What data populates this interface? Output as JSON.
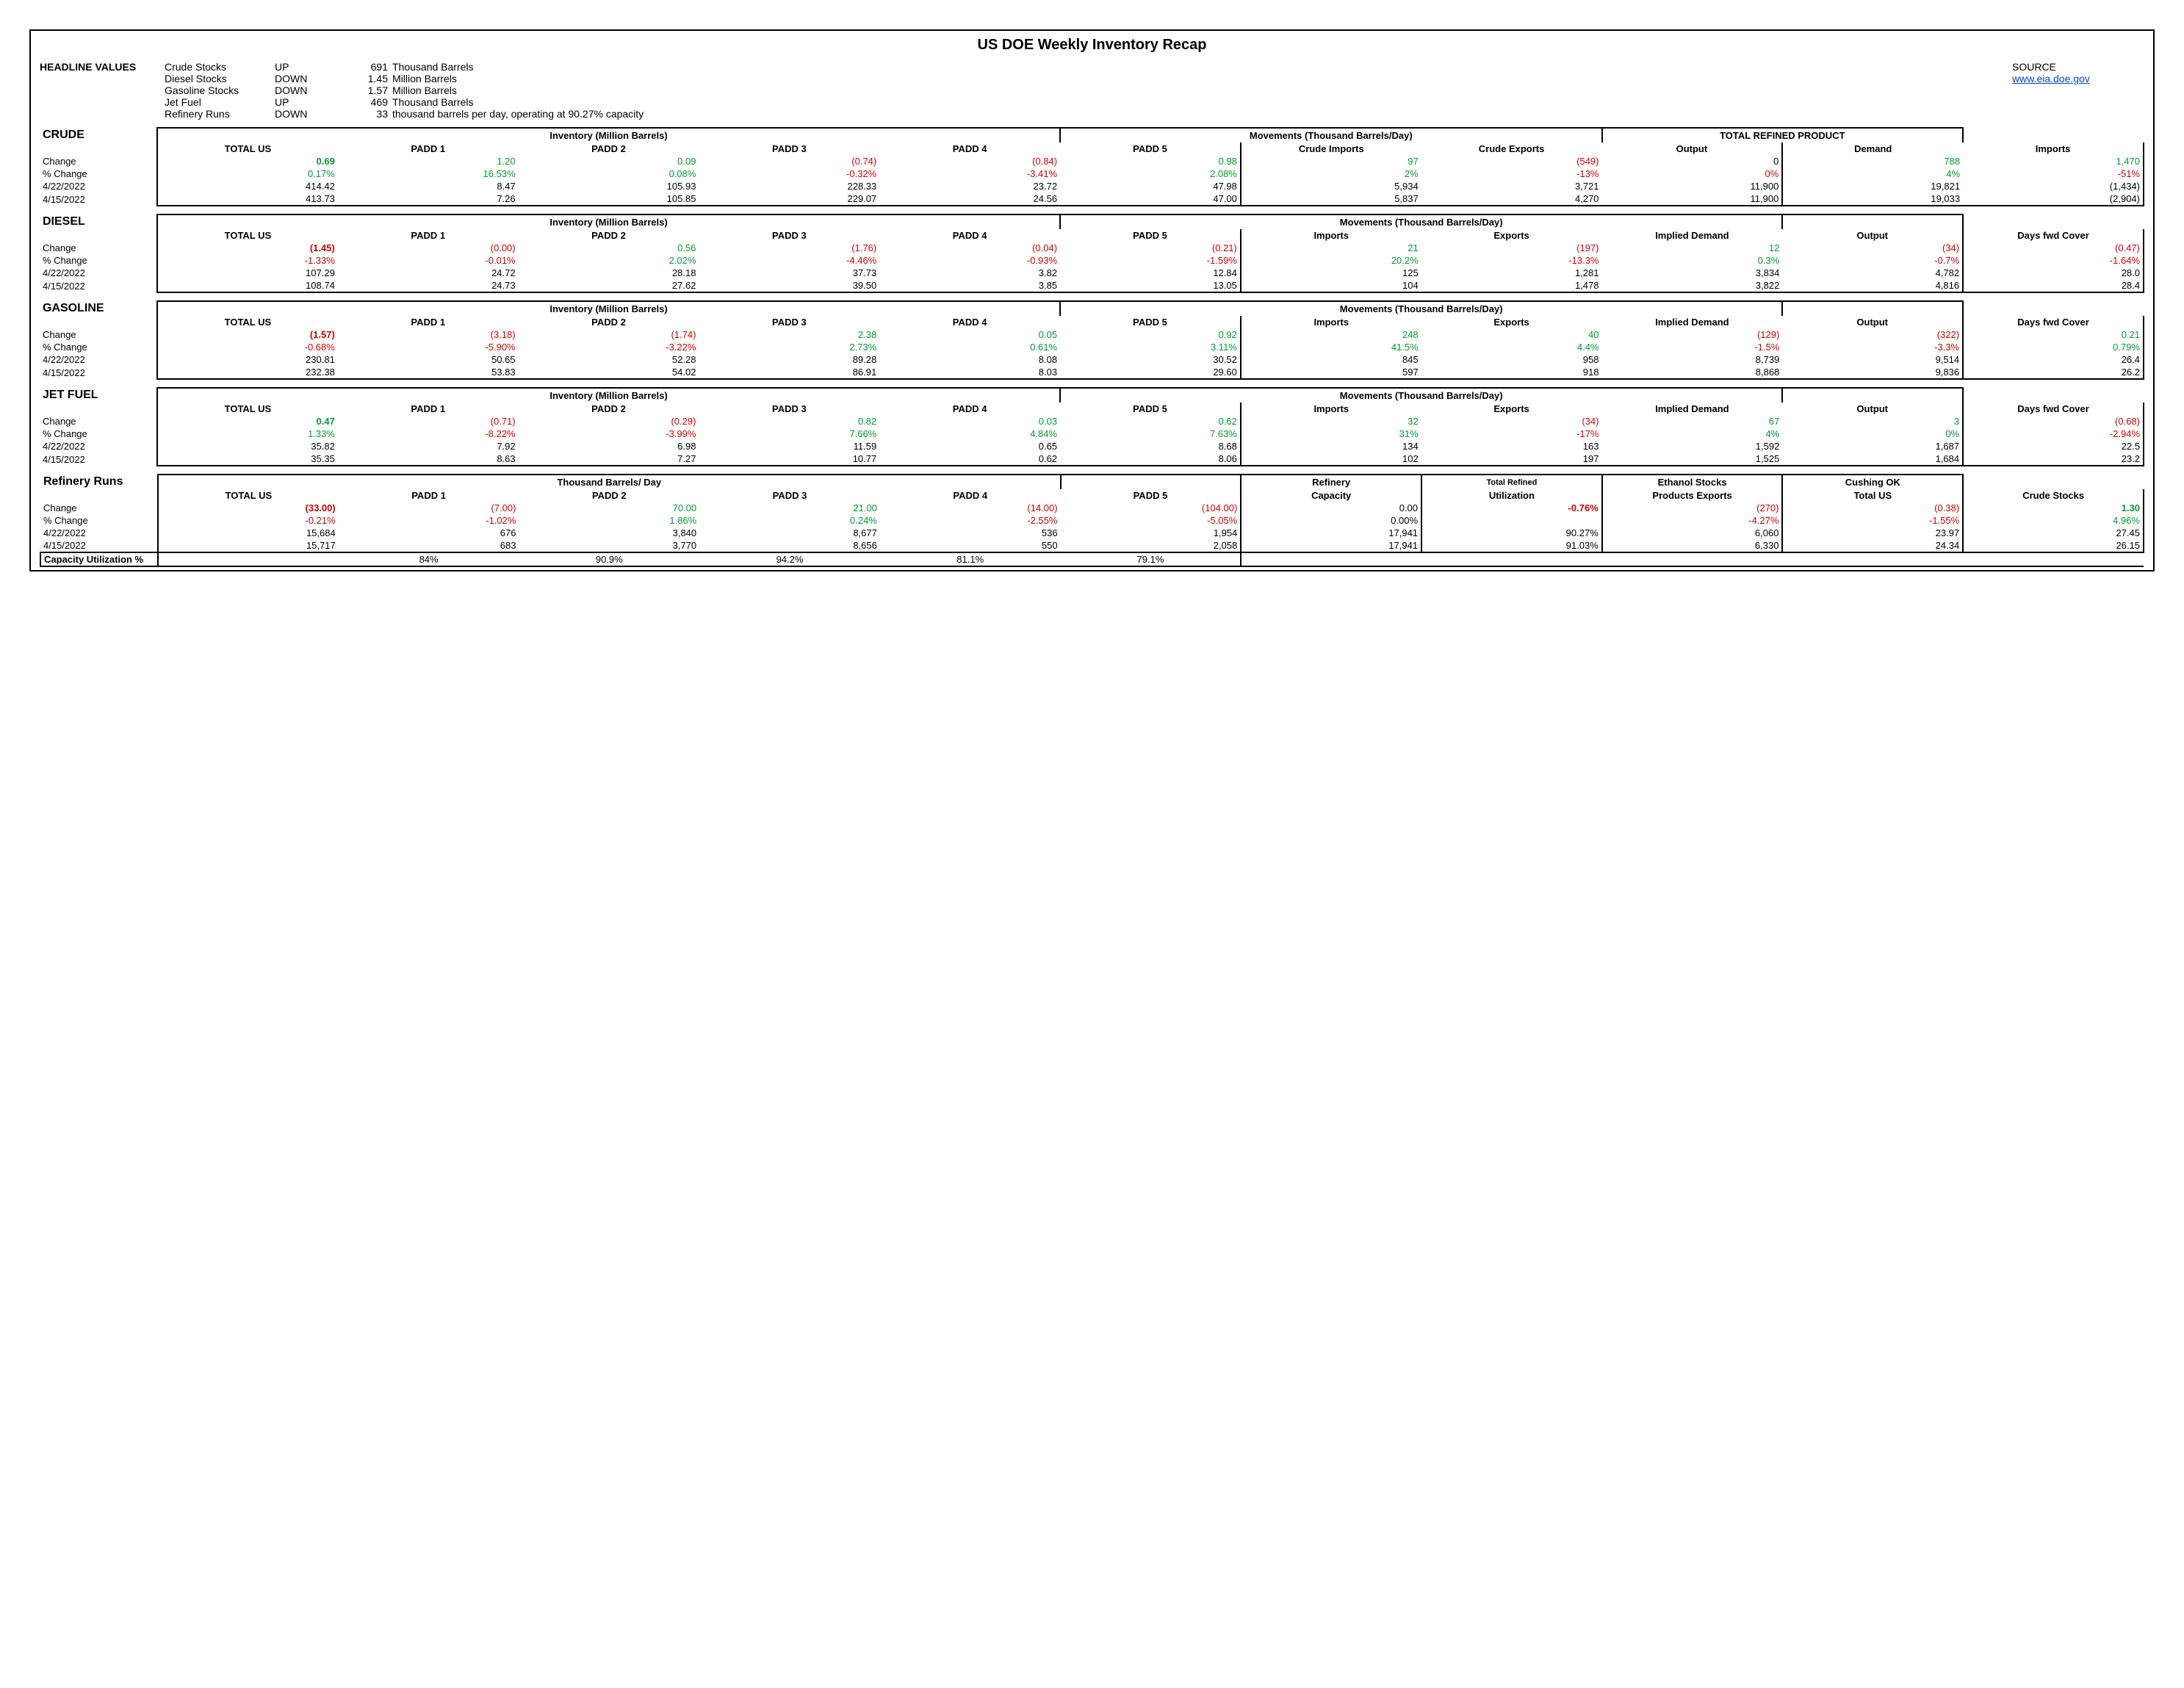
{
  "title": "US DOE Weekly Inventory Recap",
  "headline": {
    "label": "HEADLINE VALUES",
    "rows": [
      {
        "name": "Crude Stocks",
        "dir": "UP",
        "val": "691",
        "unit": "Thousand Barrels"
      },
      {
        "name": "Diesel Stocks",
        "dir": "DOWN",
        "val": "1.45",
        "unit": "Million Barrels"
      },
      {
        "name": "Gasoline Stocks",
        "dir": "DOWN",
        "val": "1.57",
        "unit": "Million Barrels"
      },
      {
        "name": "Jet Fuel",
        "dir": "UP",
        "val": "469",
        "unit": "Thousand Barrels"
      },
      {
        "name": "Refinery Runs",
        "dir": "DOWN",
        "val": "33",
        "unit": "thousand barrels per day, operating at     90.27% capacity"
      }
    ],
    "source_label": "SOURCE",
    "source_link": "www.eia.doe.gov"
  },
  "crude": {
    "label": "CRUDE",
    "inv_header": "Inventory (Million Barrels)",
    "mov_header": "Movements (Thousand Barrels/Day)",
    "tot_header": "TOTAL REFINED PRODUCT",
    "cols": [
      "TOTAL US",
      "PADD 1",
      "PADD 2",
      "PADD 3",
      "PADD 4",
      "PADD 5",
      "Crude Imports",
      "Crude Exports",
      "Output",
      "Demand",
      "Imports"
    ],
    "rows": [
      {
        "label": "Change",
        "vals": [
          [
            "0.69",
            "pos bold"
          ],
          [
            "1.20",
            "pos"
          ],
          [
            "0.09",
            "pos"
          ],
          [
            "(0.74)",
            "neg"
          ],
          [
            "(0.84)",
            "neg"
          ],
          [
            "0.98",
            "pos"
          ],
          [
            "97",
            "pos"
          ],
          [
            "(549)",
            "neg"
          ],
          [
            "0",
            ""
          ],
          [
            "788",
            "pos"
          ],
          [
            "1,470",
            "pos"
          ]
        ]
      },
      {
        "label": "% Change",
        "vals": [
          [
            "0.17%",
            "pos"
          ],
          [
            "16.53%",
            "pos"
          ],
          [
            "0.08%",
            "pos"
          ],
          [
            "-0.32%",
            "neg"
          ],
          [
            "-3.41%",
            "neg"
          ],
          [
            "2.08%",
            "pos"
          ],
          [
            "2%",
            "pos"
          ],
          [
            "-13%",
            "neg"
          ],
          [
            "0%",
            "neg"
          ],
          [
            "4%",
            "pos"
          ],
          [
            "-51%",
            "neg"
          ]
        ]
      },
      {
        "label": "4/22/2022",
        "vals": [
          [
            "414.42",
            ""
          ],
          [
            "8.47",
            ""
          ],
          [
            "105.93",
            ""
          ],
          [
            "228.33",
            ""
          ],
          [
            "23.72",
            ""
          ],
          [
            "47.98",
            ""
          ],
          [
            "5,934",
            ""
          ],
          [
            "3,721",
            ""
          ],
          [
            "11,900",
            ""
          ],
          [
            "19,821",
            ""
          ],
          [
            "(1,434)",
            ""
          ]
        ]
      },
      {
        "label": "4/15/2022",
        "vals": [
          [
            "413.73",
            ""
          ],
          [
            "7.26",
            ""
          ],
          [
            "105.85",
            ""
          ],
          [
            "229.07",
            ""
          ],
          [
            "24.56",
            ""
          ],
          [
            "47.00",
            ""
          ],
          [
            "5,837",
            ""
          ],
          [
            "4,270",
            ""
          ],
          [
            "11,900",
            ""
          ],
          [
            "19,033",
            ""
          ],
          [
            "(2,904)",
            ""
          ]
        ]
      }
    ]
  },
  "diesel": {
    "label": "DIESEL",
    "inv_header": "Inventory (Million Barrels)",
    "mov_header": "Movements (Thousand Barrels/Day)",
    "cols": [
      "TOTAL US",
      "PADD 1",
      "PADD 2",
      "PADD 3",
      "PADD 4",
      "PADD 5",
      "Imports",
      "Exports",
      "Implied Demand",
      "Output",
      "Days fwd Cover"
    ],
    "rows": [
      {
        "label": "Change",
        "vals": [
          [
            "(1.45)",
            "neg bold"
          ],
          [
            "(0.00)",
            "neg"
          ],
          [
            "0.56",
            "pos"
          ],
          [
            "(1.76)",
            "neg"
          ],
          [
            "(0.04)",
            "neg"
          ],
          [
            "(0.21)",
            "neg"
          ],
          [
            "21",
            "pos"
          ],
          [
            "(197)",
            "neg"
          ],
          [
            "12",
            "pos"
          ],
          [
            "(34)",
            "neg"
          ],
          [
            "(0.47)",
            "neg"
          ]
        ]
      },
      {
        "label": "% Change",
        "vals": [
          [
            "-1.33%",
            "neg"
          ],
          [
            "-0.01%",
            "neg"
          ],
          [
            "2.02%",
            "pos"
          ],
          [
            "-4.46%",
            "neg"
          ],
          [
            "-0.93%",
            "neg"
          ],
          [
            "-1.59%",
            "neg"
          ],
          [
            "20.2%",
            "pos"
          ],
          [
            "-13.3%",
            "neg"
          ],
          [
            "0.3%",
            "pos"
          ],
          [
            "-0.7%",
            "neg"
          ],
          [
            "-1.64%",
            "neg"
          ]
        ]
      },
      {
        "label": "4/22/2022",
        "vals": [
          [
            "107.29",
            ""
          ],
          [
            "24.72",
            ""
          ],
          [
            "28.18",
            ""
          ],
          [
            "37.73",
            ""
          ],
          [
            "3.82",
            ""
          ],
          [
            "12.84",
            ""
          ],
          [
            "125",
            ""
          ],
          [
            "1,281",
            ""
          ],
          [
            "3,834",
            ""
          ],
          [
            "4,782",
            ""
          ],
          [
            "28.0",
            ""
          ]
        ]
      },
      {
        "label": "4/15/2022",
        "vals": [
          [
            "108.74",
            ""
          ],
          [
            "24.73",
            ""
          ],
          [
            "27.62",
            ""
          ],
          [
            "39.50",
            ""
          ],
          [
            "3.85",
            ""
          ],
          [
            "13.05",
            ""
          ],
          [
            "104",
            ""
          ],
          [
            "1,478",
            ""
          ],
          [
            "3,822",
            ""
          ],
          [
            "4,816",
            ""
          ],
          [
            "28.4",
            ""
          ]
        ]
      }
    ]
  },
  "gasoline": {
    "label": "GASOLINE",
    "cols": [
      "TOTAL US",
      "PADD 1",
      "PADD 2",
      "PADD 3",
      "PADD 4",
      "PADD 5",
      "Imports",
      "Exports",
      "Implied Demand",
      "Output",
      "Days fwd Cover"
    ],
    "rows": [
      {
        "label": "Change",
        "vals": [
          [
            "(1.57)",
            "neg bold"
          ],
          [
            "(3.18)",
            "neg"
          ],
          [
            "(1.74)",
            "neg"
          ],
          [
            "2.38",
            "pos"
          ],
          [
            "0.05",
            "pos"
          ],
          [
            "0.92",
            "pos"
          ],
          [
            "248",
            "pos"
          ],
          [
            "40",
            "pos"
          ],
          [
            "(129)",
            "neg"
          ],
          [
            "(322)",
            "neg"
          ],
          [
            "0.21",
            "pos"
          ]
        ]
      },
      {
        "label": "% Change",
        "vals": [
          [
            "-0.68%",
            "neg"
          ],
          [
            "-5.90%",
            "neg"
          ],
          [
            "-3.22%",
            "neg"
          ],
          [
            "2.73%",
            "pos"
          ],
          [
            "0.61%",
            "pos"
          ],
          [
            "3.11%",
            "pos"
          ],
          [
            "41.5%",
            "pos"
          ],
          [
            "4.4%",
            "pos"
          ],
          [
            "-1.5%",
            "neg"
          ],
          [
            "-3.3%",
            "neg"
          ],
          [
            "0.79%",
            "pos"
          ]
        ]
      },
      {
        "label": "4/22/2022",
        "vals": [
          [
            "230.81",
            ""
          ],
          [
            "50.65",
            ""
          ],
          [
            "52.28",
            ""
          ],
          [
            "89.28",
            ""
          ],
          [
            "8.08",
            ""
          ],
          [
            "30.52",
            ""
          ],
          [
            "845",
            ""
          ],
          [
            "958",
            ""
          ],
          [
            "8,739",
            ""
          ],
          [
            "9,514",
            ""
          ],
          [
            "26.4",
            ""
          ]
        ]
      },
      {
        "label": "4/15/2022",
        "vals": [
          [
            "232.38",
            ""
          ],
          [
            "53.83",
            ""
          ],
          [
            "54.02",
            ""
          ],
          [
            "86.91",
            ""
          ],
          [
            "8.03",
            ""
          ],
          [
            "29.60",
            ""
          ],
          [
            "597",
            ""
          ],
          [
            "918",
            ""
          ],
          [
            "8,868",
            ""
          ],
          [
            "9,836",
            ""
          ],
          [
            "26.2",
            ""
          ]
        ]
      }
    ]
  },
  "jet": {
    "label": "JET FUEL",
    "cols": [
      "TOTAL US",
      "PADD 1",
      "PADD 2",
      "PADD 3",
      "PADD 4",
      "PADD 5",
      "Imports",
      "Exports",
      "Implied Demand",
      "Output",
      "Days fwd Cover"
    ],
    "rows": [
      {
        "label": "Change",
        "vals": [
          [
            "0.47",
            "pos bold"
          ],
          [
            "(0.71)",
            "neg"
          ],
          [
            "(0.29)",
            "neg"
          ],
          [
            "0.82",
            "pos"
          ],
          [
            "0.03",
            "pos"
          ],
          [
            "0.62",
            "pos"
          ],
          [
            "32",
            "pos"
          ],
          [
            "(34)",
            "neg"
          ],
          [
            "67",
            "pos"
          ],
          [
            "3",
            "pos"
          ],
          [
            "(0.68)",
            "neg"
          ]
        ]
      },
      {
        "label": "% Change",
        "vals": [
          [
            "1.33%",
            "pos"
          ],
          [
            "-8.22%",
            "neg"
          ],
          [
            "-3.99%",
            "neg"
          ],
          [
            "7.66%",
            "pos"
          ],
          [
            "4.84%",
            "pos"
          ],
          [
            "7.63%",
            "pos"
          ],
          [
            "31%",
            "pos"
          ],
          [
            "-17%",
            "neg"
          ],
          [
            "4%",
            "pos"
          ],
          [
            "0%",
            "pos"
          ],
          [
            "-2.94%",
            "neg"
          ]
        ]
      },
      {
        "label": "4/22/2022",
        "vals": [
          [
            "35.82",
            ""
          ],
          [
            "7.92",
            ""
          ],
          [
            "6.98",
            ""
          ],
          [
            "11.59",
            ""
          ],
          [
            "0.65",
            ""
          ],
          [
            "8.68",
            ""
          ],
          [
            "134",
            ""
          ],
          [
            "163",
            ""
          ],
          [
            "1,592",
            ""
          ],
          [
            "1,687",
            ""
          ],
          [
            "22.5",
            ""
          ]
        ]
      },
      {
        "label": "4/15/2022",
        "vals": [
          [
            "35.35",
            ""
          ],
          [
            "8.63",
            ""
          ],
          [
            "7.27",
            ""
          ],
          [
            "10.77",
            ""
          ],
          [
            "0.62",
            ""
          ],
          [
            "8.06",
            ""
          ],
          [
            "102",
            ""
          ],
          [
            "197",
            ""
          ],
          [
            "1,525",
            ""
          ],
          [
            "1,684",
            ""
          ],
          [
            "23.2",
            ""
          ]
        ]
      }
    ]
  },
  "refinery": {
    "label": "Refinery Runs",
    "thd_header": "Thousand Barrels/ Day",
    "headers1": [
      "",
      "",
      "",
      "",
      "",
      "",
      "",
      "Refinery",
      "Total Refined",
      "Ethanol Stocks",
      "Cushing OK"
    ],
    "cols": [
      "TOTAL US",
      "PADD 1",
      "PADD 2",
      "PADD 3",
      "PADD 4",
      "PADD 5",
      "Capacity",
      "Utilization",
      "Products Exports",
      "Total US",
      "Crude Stocks"
    ],
    "rows": [
      {
        "label": "Change",
        "vals": [
          [
            "(33.00)",
            "neg bold"
          ],
          [
            "(7.00)",
            "neg"
          ],
          [
            "70.00",
            "pos"
          ],
          [
            "21.00",
            "pos"
          ],
          [
            "(14.00)",
            "neg"
          ],
          [
            "(104.00)",
            "neg"
          ],
          [
            "0.00",
            ""
          ],
          [
            "-0.76%",
            "neg bold"
          ],
          [
            "(270)",
            "neg"
          ],
          [
            "(0.38)",
            "neg"
          ],
          [
            "1.30",
            "pos bold"
          ]
        ]
      },
      {
        "label": "% Change",
        "vals": [
          [
            "-0.21%",
            "neg"
          ],
          [
            "-1.02%",
            "neg"
          ],
          [
            "1.86%",
            "pos"
          ],
          [
            "0.24%",
            "pos"
          ],
          [
            "-2.55%",
            "neg"
          ],
          [
            "-5.05%",
            "neg"
          ],
          [
            "0.00%",
            ""
          ],
          [
            "",
            ""
          ],
          [
            "-4.27%",
            "neg"
          ],
          [
            "-1.55%",
            "neg"
          ],
          [
            "4.96%",
            "pos"
          ]
        ]
      },
      {
        "label": "4/22/2022",
        "vals": [
          [
            "15,684",
            ""
          ],
          [
            "676",
            ""
          ],
          [
            "3,840",
            ""
          ],
          [
            "8,677",
            ""
          ],
          [
            "536",
            ""
          ],
          [
            "1,954",
            ""
          ],
          [
            "17,941",
            ""
          ],
          [
            "90.27%",
            ""
          ],
          [
            "6,060",
            ""
          ],
          [
            "23.97",
            ""
          ],
          [
            "27.45",
            ""
          ]
        ]
      },
      {
        "label": "4/15/2022",
        "vals": [
          [
            "15,717",
            ""
          ],
          [
            "683",
            ""
          ],
          [
            "3,770",
            ""
          ],
          [
            "8,656",
            ""
          ],
          [
            "550",
            ""
          ],
          [
            "2,058",
            ""
          ],
          [
            "17,941",
            ""
          ],
          [
            "91.03%",
            ""
          ],
          [
            "6,330",
            ""
          ],
          [
            "24.34",
            ""
          ],
          [
            "26.15",
            ""
          ]
        ]
      }
    ],
    "cap_label": "Capacity Utilization %",
    "cap": [
      "",
      "84%",
      "90.9%",
      "94.2%",
      "81.1%",
      "79.1%",
      "",
      "",
      "",
      "",
      ""
    ]
  }
}
